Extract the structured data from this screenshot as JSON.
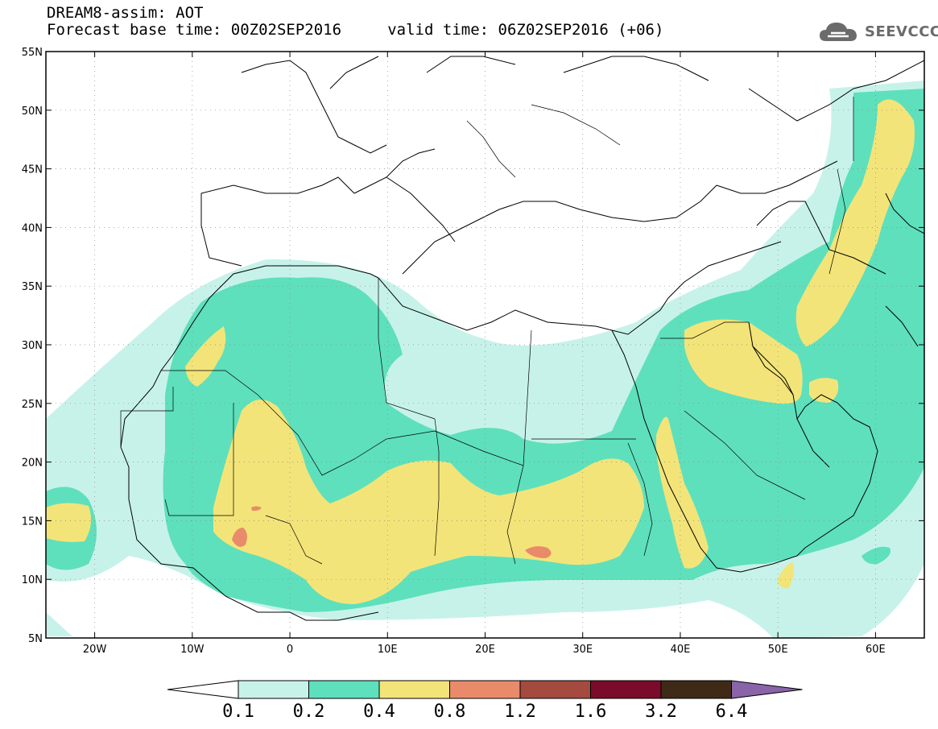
{
  "header": {
    "line1": "DREAM8-assim: AOT",
    "line2": "Forecast base time: 00Z02SEP2016     valid time: 06Z02SEP2016 (+06)"
  },
  "logo": {
    "text": "SEEVCCC",
    "icon": "cloud-icon"
  },
  "map": {
    "lat_labels": [
      "55N",
      "50N",
      "45N",
      "40N",
      "35N",
      "30N",
      "25N",
      "20N",
      "15N",
      "10N",
      "5N"
    ],
    "lon_labels": [
      "20W",
      "10W",
      "0",
      "10E",
      "20E",
      "30E",
      "40E",
      "50E",
      "60E"
    ],
    "lat_range": [
      5,
      55
    ],
    "lon_range": [
      -25,
      65
    ]
  },
  "colorbar": {
    "labels": [
      "0.1",
      "0.2",
      "0.4",
      "0.8",
      "1.2",
      "1.6",
      "3.2",
      "6.4"
    ],
    "colors": [
      "#ffffff",
      "#c7f2ea",
      "#5ee0bc",
      "#f3e479",
      "#e98b6a",
      "#a54a3e",
      "#7a0b2a",
      "#3e2a17",
      "#8a64a8"
    ]
  },
  "colors": {
    "level1": "#c7f2ea",
    "level2": "#5ee0bc",
    "level3": "#f3e479",
    "level4": "#e98b6a"
  }
}
